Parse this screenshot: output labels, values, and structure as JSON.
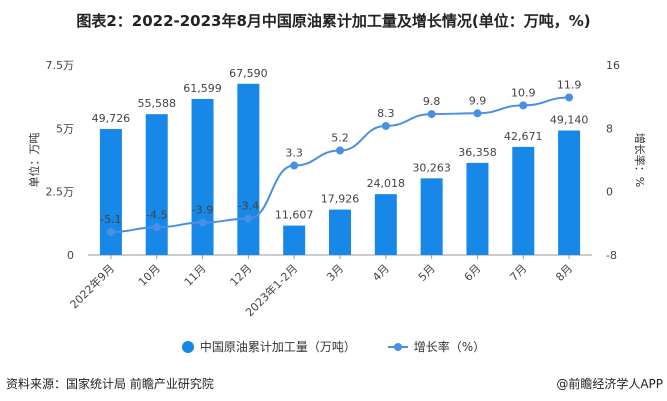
{
  "title": "图表2：2022-2023年8月中国原油累计加工量及增长情况(单位：万吨，%)",
  "chart_data": {
    "type": "bar+line",
    "categories": [
      "2022年9月",
      "10月",
      "11月",
      "12月",
      "2023年1-2月",
      "3月",
      "4月",
      "5月",
      "6月",
      "7月",
      "8月"
    ],
    "series": [
      {
        "name": "中国原油累计加工量（万吨）",
        "type": "bar",
        "axis": "left",
        "color": "#1787e8",
        "values": [
          49726,
          55588,
          61599,
          67590,
          11607,
          17926,
          24018,
          30263,
          36358,
          42671,
          49140
        ],
        "labels": [
          "49,726",
          "55,588",
          "61,599",
          "67,590",
          "11,607",
          "17,926",
          "24,018",
          "30,263",
          "36,358",
          "42,671",
          "49,140"
        ]
      },
      {
        "name": "增长率（%）",
        "type": "line",
        "axis": "right",
        "color": "#4a90e2",
        "values": [
          -5.1,
          -4.5,
          -3.9,
          -3.4,
          3.3,
          5.2,
          8.3,
          9.8,
          9.9,
          10.9,
          11.9
        ]
      }
    ],
    "left_axis": {
      "label": "单位：万吨",
      "ylim": [
        0,
        75000
      ],
      "ticks": [
        0,
        25000,
        50000,
        75000
      ],
      "tick_labels": [
        "0",
        "2.5万",
        "5万",
        "7.5万"
      ]
    },
    "right_axis": {
      "label": "增长率：%",
      "ylim": [
        -8,
        16
      ],
      "ticks": [
        -8,
        0,
        8,
        16
      ],
      "tick_labels": [
        "-8",
        "0",
        "8",
        "16"
      ]
    },
    "grid": false,
    "legend": "bottom"
  },
  "footer": {
    "source": "资料来源：国家统计局 前瞻产业研究院",
    "credit": "@前瞻经济学人APP"
  }
}
